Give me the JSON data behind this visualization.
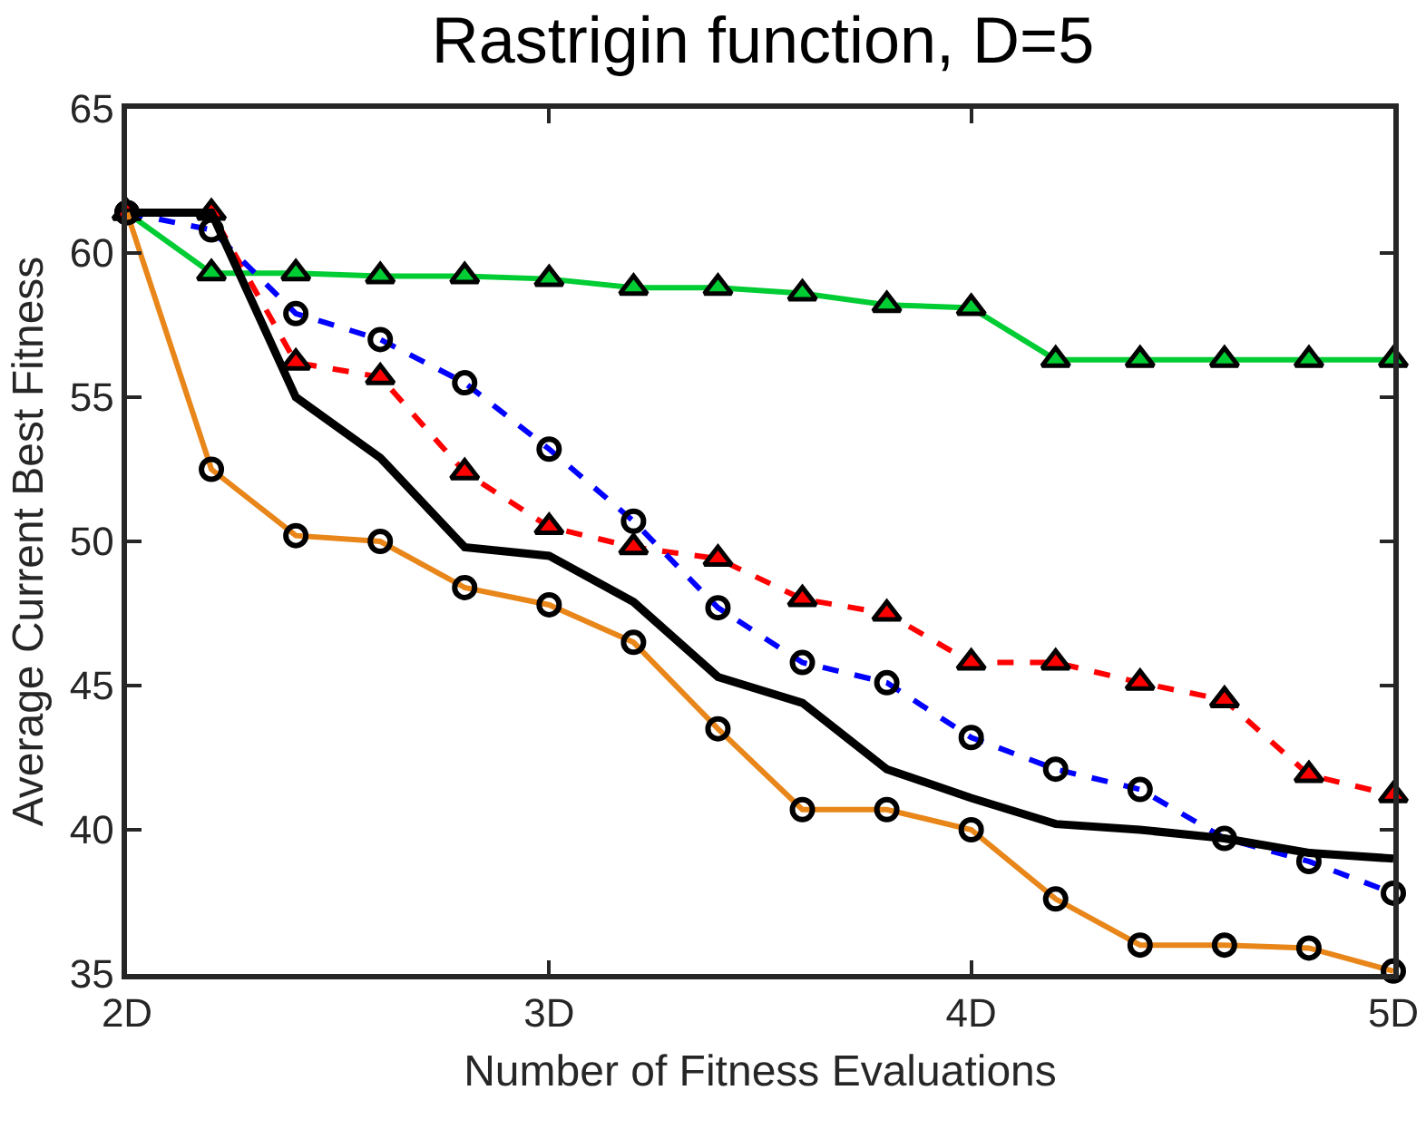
{
  "chart_data": {
    "type": "line",
    "title": "Rastrigin function, D=5",
    "xlabel": "Number of Fitness Evaluations",
    "ylabel": "Average Current Best Fitness",
    "x": [
      2,
      2.2,
      2.4,
      2.6,
      2.8,
      3,
      3.2,
      3.4,
      3.6,
      3.8,
      4,
      4.2,
      4.4,
      4.6,
      4.8,
      5
    ],
    "xlim": [
      2,
      5
    ],
    "xticks": [
      {
        "value": 2,
        "label": "2D"
      },
      {
        "value": 3,
        "label": "3D"
      },
      {
        "value": 4,
        "label": "4D"
      },
      {
        "value": 5,
        "label": "5D"
      }
    ],
    "ylim": [
      35,
      65
    ],
    "yticks": [
      35,
      40,
      45,
      50,
      55,
      60,
      65
    ],
    "grid": false,
    "series": [
      {
        "color": "#00cc33",
        "marker": "triangle",
        "line_style": "solid",
        "values": [
          61.4,
          59.3,
          59.3,
          59.2,
          59.2,
          59.1,
          58.8,
          58.8,
          58.6,
          58.2,
          58.1,
          56.3,
          56.3,
          56.3,
          56.3,
          56.3
        ]
      },
      {
        "color": "#ff0000",
        "marker": "triangle",
        "line_style": "dashed",
        "values": [
          61.4,
          61.4,
          56.2,
          55.7,
          52.4,
          50.5,
          49.8,
          49.4,
          48.0,
          47.5,
          45.8,
          45.8,
          45.1,
          44.5,
          41.9,
          41.2
        ]
      },
      {
        "color": "#0000ff",
        "marker": "circle",
        "line_style": "dashed",
        "values": [
          61.4,
          60.8,
          57.9,
          57.0,
          55.5,
          53.2,
          50.7,
          47.7,
          45.8,
          45.1,
          43.2,
          42.1,
          41.4,
          39.7,
          38.9,
          37.8
        ]
      },
      {
        "color": "#000000",
        "marker": "none",
        "line_style": "solid",
        "values": [
          61.4,
          61.4,
          55.0,
          52.9,
          49.8,
          49.5,
          47.9,
          45.3,
          44.4,
          42.1,
          41.1,
          40.2,
          40.0,
          39.7,
          39.2,
          39.0
        ]
      },
      {
        "color": "#e8861a",
        "marker": "circle",
        "line_style": "solid",
        "values": [
          61.4,
          52.5,
          50.2,
          50.0,
          48.4,
          47.8,
          46.5,
          43.5,
          40.7,
          40.7,
          40.0,
          37.6,
          36.0,
          36.0,
          35.9,
          35.1
        ]
      }
    ]
  }
}
